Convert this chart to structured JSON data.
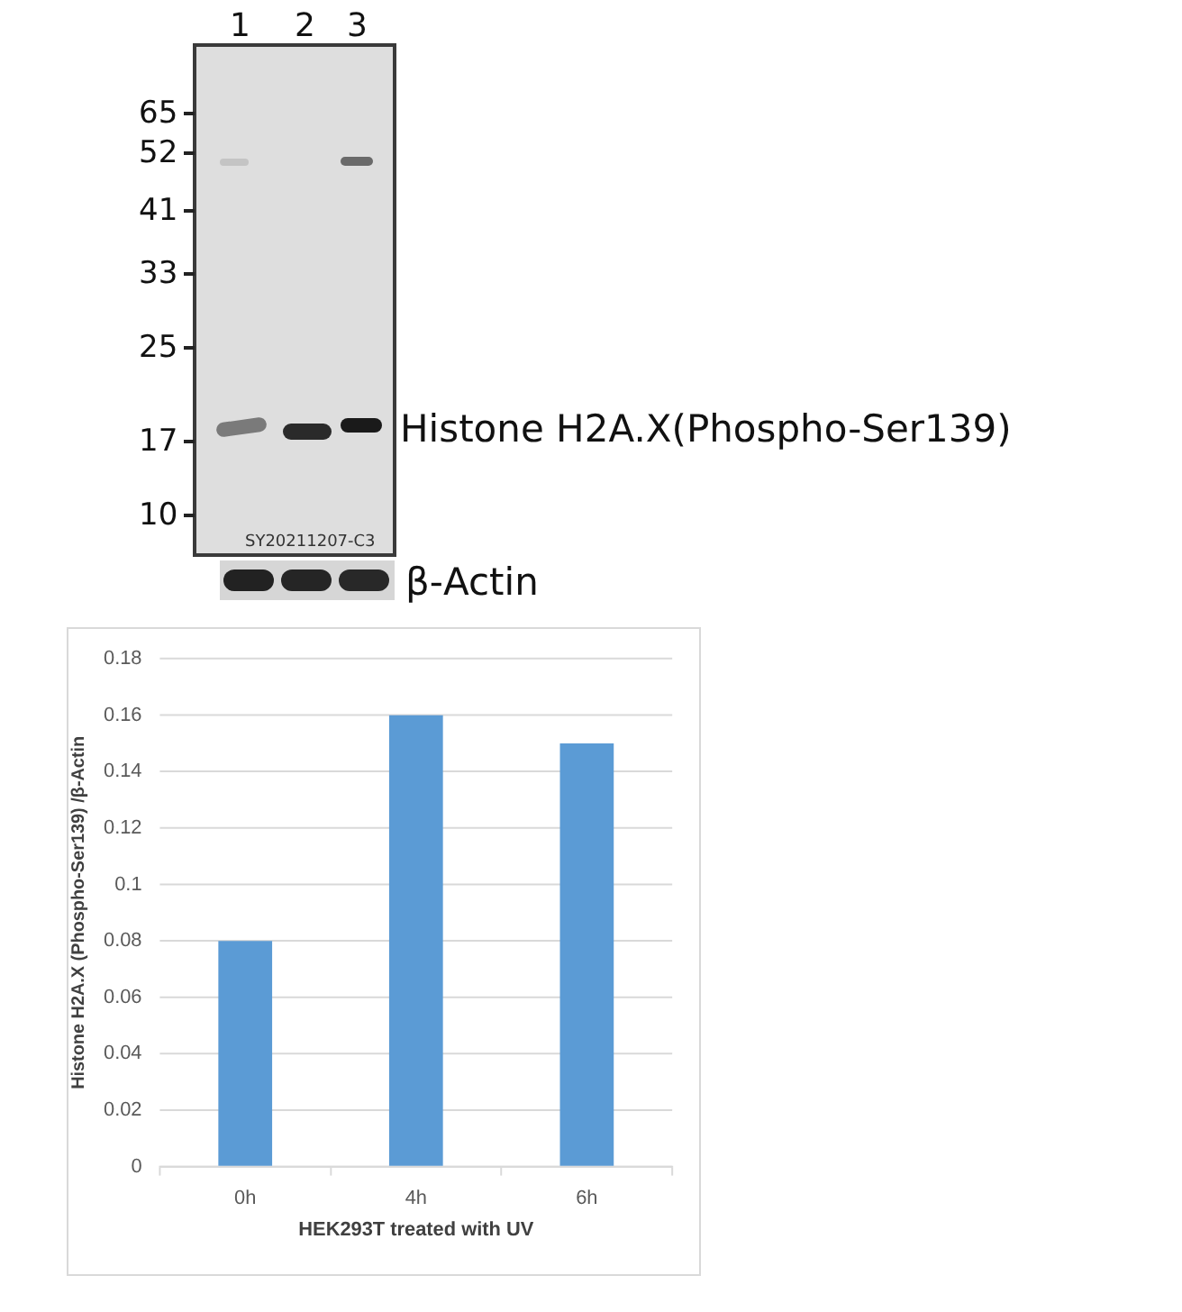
{
  "chart_data": {
    "type": "bar",
    "xlabel": "HEK293T treated with UV",
    "ylabel": "Histone H2A.X (Phospho-Ser139) /β-Actin",
    "categories": [
      "0h",
      "4h",
      "6h"
    ],
    "values": [
      0.08,
      0.16,
      0.15
    ],
    "color": "#5b9bd5",
    "ylim": [
      0,
      0.18
    ],
    "yticks": [
      0,
      0.02,
      0.04,
      0.06,
      0.08,
      0.1,
      0.12,
      0.14,
      0.16,
      0.18
    ],
    "grid": "y",
    "annotations": [
      "1",
      "2",
      "3",
      "65",
      "52",
      "41",
      "33",
      "25",
      "17",
      "10",
      "SY20211207-C3",
      "Histone H2A.X(Phospho-Ser139)",
      "β-Actin"
    ]
  }
}
